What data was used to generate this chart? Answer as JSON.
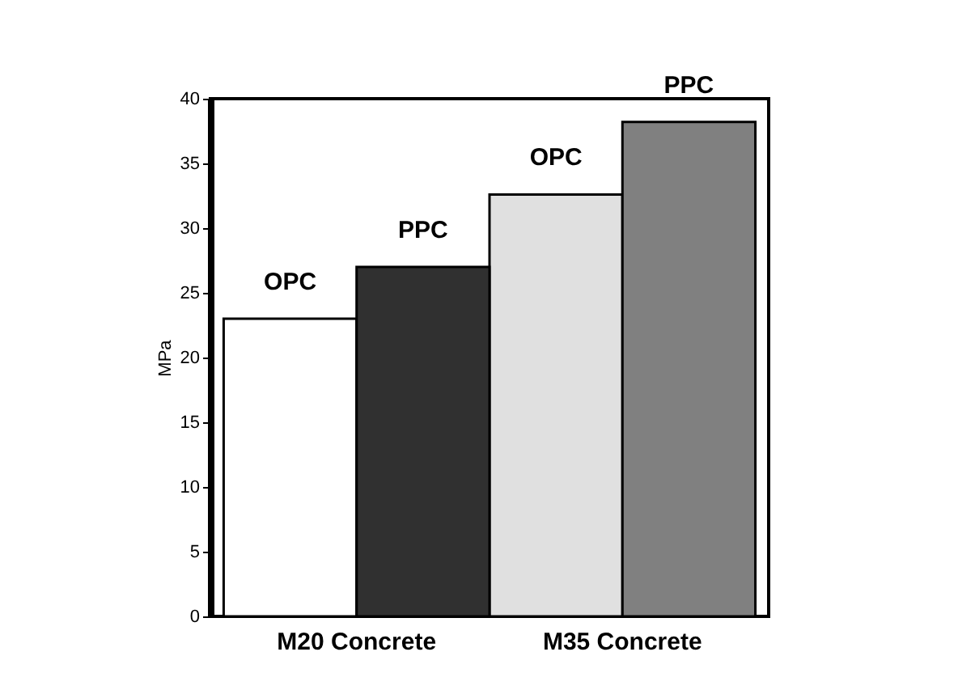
{
  "chart_data": {
    "type": "bar",
    "ylabel": "MPa",
    "categories": [
      "M20 Concrete",
      "M35 Concrete"
    ],
    "series": [
      {
        "name": "OPC",
        "colors": [
          "#ffffff",
          "#e0e0e0"
        ],
        "values": [
          23,
          32.6
        ]
      },
      {
        "name": "PPC",
        "colors": [
          "#303030",
          "#808080"
        ],
        "values": [
          27,
          38.2
        ]
      }
    ],
    "ylim": [
      0,
      40
    ],
    "yticks": [
      0,
      5,
      10,
      15,
      20,
      25,
      30,
      35,
      40
    ],
    "grid": false
  }
}
